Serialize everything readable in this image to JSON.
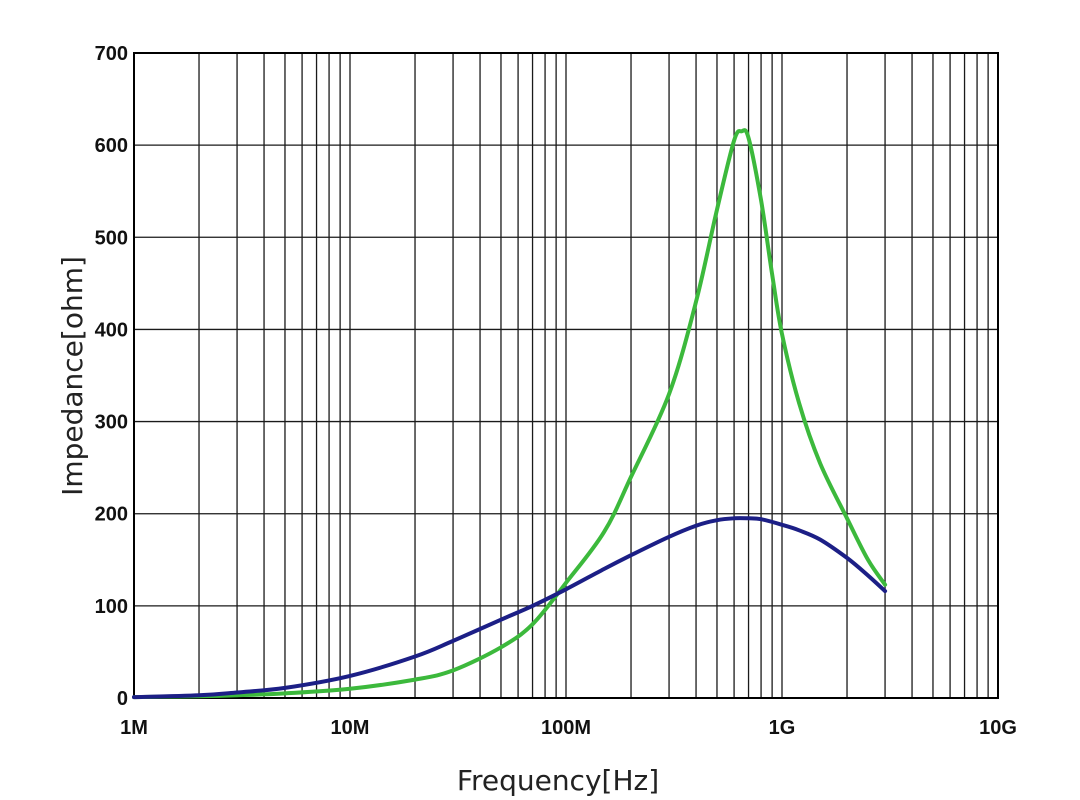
{
  "chart_data": {
    "type": "line",
    "xlabel": "Frequency[Hz]",
    "ylabel": "Impedance[ohm]",
    "xscale": "log",
    "xlim": [
      1000000,
      10000000000
    ],
    "ylim": [
      0,
      700
    ],
    "grid": true,
    "x_ticks": [
      {
        "value": 1000000,
        "label": "1M"
      },
      {
        "value": 10000000,
        "label": "10M"
      },
      {
        "value": 100000000,
        "label": "100M"
      },
      {
        "value": 1000000000,
        "label": "1G"
      },
      {
        "value": 10000000000,
        "label": "10G"
      }
    ],
    "y_ticks": [
      {
        "value": 0,
        "label": "0"
      },
      {
        "value": 100,
        "label": "100"
      },
      {
        "value": 200,
        "label": "200"
      },
      {
        "value": 300,
        "label": "300"
      },
      {
        "value": 400,
        "label": "400"
      },
      {
        "value": 500,
        "label": "500"
      },
      {
        "value": 600,
        "label": "600"
      },
      {
        "value": 700,
        "label": "700"
      }
    ],
    "series": [
      {
        "color": "#3cb93c",
        "points": [
          [
            1000000,
            1
          ],
          [
            2000000,
            2
          ],
          [
            3000000,
            3
          ],
          [
            5000000,
            5
          ],
          [
            10000000,
            10
          ],
          [
            20000000,
            20
          ],
          [
            30000000,
            30
          ],
          [
            50000000,
            55
          ],
          [
            70000000,
            80
          ],
          [
            100000000,
            125
          ],
          [
            150000000,
            180
          ],
          [
            200000000,
            240
          ],
          [
            300000000,
            330
          ],
          [
            400000000,
            430
          ],
          [
            500000000,
            530
          ],
          [
            600000000,
            605
          ],
          [
            650000000,
            615
          ],
          [
            700000000,
            608
          ],
          [
            800000000,
            540
          ],
          [
            900000000,
            460
          ],
          [
            1000000000,
            395
          ],
          [
            1200000000,
            320
          ],
          [
            1500000000,
            255
          ],
          [
            2000000000,
            195
          ],
          [
            2500000000,
            150
          ],
          [
            3000000000,
            123
          ]
        ]
      },
      {
        "color": "#1c1f86",
        "points": [
          [
            1000000,
            1
          ],
          [
            2000000,
            3
          ],
          [
            3000000,
            6
          ],
          [
            5000000,
            11
          ],
          [
            10000000,
            24
          ],
          [
            20000000,
            45
          ],
          [
            30000000,
            62
          ],
          [
            50000000,
            85
          ],
          [
            70000000,
            100
          ],
          [
            100000000,
            118
          ],
          [
            150000000,
            140
          ],
          [
            200000000,
            155
          ],
          [
            300000000,
            175
          ],
          [
            400000000,
            187
          ],
          [
            500000000,
            193
          ],
          [
            600000000,
            195
          ],
          [
            700000000,
            195
          ],
          [
            800000000,
            194
          ],
          [
            1000000000,
            188
          ],
          [
            1200000000,
            182
          ],
          [
            1500000000,
            172
          ],
          [
            2000000000,
            152
          ],
          [
            2500000000,
            133
          ],
          [
            3000000000,
            116
          ]
        ]
      }
    ]
  }
}
